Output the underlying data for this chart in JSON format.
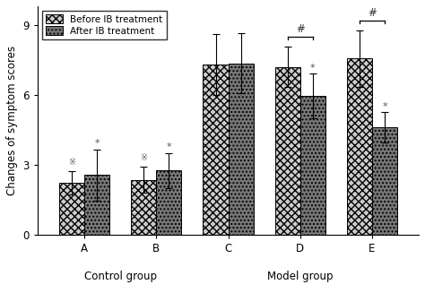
{
  "groups": [
    "A",
    "B",
    "C",
    "D",
    "E"
  ],
  "before_values": [
    2.2,
    2.35,
    7.3,
    7.2,
    7.55
  ],
  "after_values": [
    2.55,
    2.75,
    7.35,
    5.95,
    4.6
  ],
  "before_errors": [
    0.5,
    0.55,
    1.3,
    0.85,
    1.2
  ],
  "after_errors": [
    1.1,
    0.75,
    1.3,
    0.95,
    0.65
  ],
  "ylabel": "Changes of symptom scores",
  "ylim": [
    0,
    9.8
  ],
  "yticks": [
    0,
    3,
    6,
    9
  ],
  "legend_before": "Before IB treatment",
  "legend_after": "After IB treatment",
  "control_label": "Control group",
  "model_label": "Model group",
  "bar_width": 0.35,
  "background_color": "#ffffff"
}
